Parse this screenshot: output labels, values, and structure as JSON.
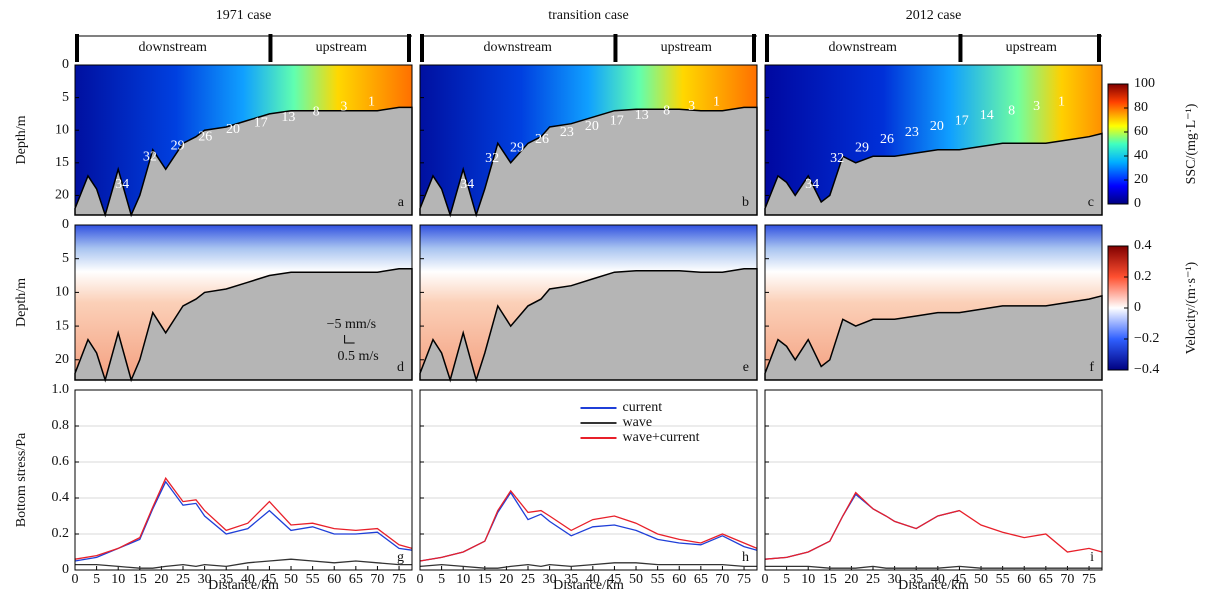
{
  "chart_data": [
    {
      "type": "contour",
      "title": "1971 case",
      "regions": [
        "downstream",
        "upstream"
      ],
      "xlim": [
        0,
        78
      ],
      "ylim": [
        0,
        23
      ],
      "yticks": [
        0,
        5,
        10,
        15,
        20
      ],
      "y_label": "Depth/m",
      "bed_x": [
        0,
        3,
        5,
        7,
        10,
        13,
        15,
        18,
        21,
        25,
        28,
        30,
        35,
        40,
        45,
        50,
        55,
        60,
        65,
        70,
        75,
        78
      ],
      "bed_depth": [
        22,
        17,
        19,
        23,
        16,
        23,
        20,
        13,
        16,
        12,
        11,
        10,
        9.5,
        8.5,
        7.5,
        7,
        7,
        7,
        7,
        7,
        6.5,
        6.5
      ],
      "contour_labels": [
        34,
        32,
        29,
        26,
        20,
        17,
        13,
        8,
        3,
        1
      ],
      "panel_label": "a"
    },
    {
      "type": "contour",
      "title": "transition case",
      "regions": [
        "downstream",
        "upstream"
      ],
      "xlim": [
        0,
        78
      ],
      "ylim": [
        0,
        23
      ],
      "bed_x": [
        0,
        3,
        5,
        7,
        10,
        13,
        15,
        18,
        21,
        25,
        28,
        30,
        35,
        40,
        45,
        50,
        55,
        60,
        65,
        70,
        75,
        78
      ],
      "bed_depth": [
        22,
        17,
        19,
        23,
        16,
        23,
        19,
        12,
        15,
        12,
        11,
        9.5,
        9,
        8,
        7,
        6.8,
        6.8,
        6.8,
        7,
        7,
        6.5,
        6.5
      ],
      "contour_labels": [
        34,
        32,
        29,
        26,
        23,
        20,
        17,
        13,
        8,
        3,
        1
      ],
      "panel_label": "b"
    },
    {
      "type": "contour",
      "title": "2012 case",
      "regions": [
        "downstream",
        "upstream"
      ],
      "xlim": [
        0,
        78
      ],
      "ylim": [
        0,
        23
      ],
      "bed_x": [
        0,
        3,
        5,
        7,
        10,
        13,
        15,
        18,
        21,
        25,
        28,
        30,
        35,
        40,
        45,
        50,
        55,
        60,
        65,
        70,
        75,
        78
      ],
      "bed_depth": [
        22,
        17,
        18,
        20,
        17,
        21,
        20,
        14,
        15,
        14,
        14,
        14,
        13.5,
        13,
        13,
        12.5,
        12,
        12,
        12,
        11.5,
        11,
        10.5
      ],
      "contour_labels": [
        34,
        32,
        29,
        26,
        23,
        20,
        17,
        14,
        8,
        3,
        1
      ],
      "panel_label": "c",
      "colorbar": {
        "label": "SSC/(mg·L⁻¹)",
        "lim": [
          0,
          100
        ],
        "ticks": [
          0,
          20,
          40,
          60,
          80,
          100
        ]
      }
    },
    {
      "type": "vector",
      "xlim": [
        0,
        78
      ],
      "ylim": [
        0,
        23
      ],
      "yticks": [
        0,
        5,
        10,
        15,
        20
      ],
      "y_label": "Depth/m",
      "bed_x": [
        0,
        3,
        5,
        7,
        10,
        13,
        15,
        18,
        21,
        25,
        28,
        30,
        35,
        40,
        45,
        50,
        55,
        60,
        65,
        70,
        75,
        78
      ],
      "bed_depth": [
        22,
        17,
        19,
        23,
        16,
        23,
        20,
        13,
        16,
        12,
        11,
        10,
        9.5,
        8.5,
        7.5,
        7,
        7,
        7,
        7,
        7,
        6.5,
        6.5
      ],
      "scale_labels": [
        "−5 mm/s",
        "0.5 m/s"
      ],
      "panel_label": "d"
    },
    {
      "type": "vector",
      "xlim": [
        0,
        78
      ],
      "ylim": [
        0,
        23
      ],
      "bed_x": [
        0,
        3,
        5,
        7,
        10,
        13,
        15,
        18,
        21,
        25,
        28,
        30,
        35,
        40,
        45,
        50,
        55,
        60,
        65,
        70,
        75,
        78
      ],
      "bed_depth": [
        22,
        17,
        19,
        23,
        16,
        23,
        19,
        12,
        15,
        12,
        11,
        9.5,
        9,
        8,
        7,
        6.8,
        6.8,
        6.8,
        7,
        7,
        6.5,
        6.5
      ],
      "panel_label": "e"
    },
    {
      "type": "vector",
      "xlim": [
        0,
        78
      ],
      "ylim": [
        0,
        23
      ],
      "bed_x": [
        0,
        3,
        5,
        7,
        10,
        13,
        15,
        18,
        21,
        25,
        28,
        30,
        35,
        40,
        45,
        50,
        55,
        60,
        65,
        70,
        75,
        78
      ],
      "bed_depth": [
        22,
        17,
        18,
        20,
        17,
        21,
        20,
        14,
        15,
        14,
        14,
        14,
        13.5,
        13,
        13,
        12.5,
        12,
        12,
        12,
        11.5,
        11,
        10.5
      ],
      "panel_label": "f",
      "colorbar": {
        "label": "Velocity/(m·s⁻¹)",
        "lim": [
          -0.4,
          0.4
        ],
        "ticks": [
          {
            "value": -0.4,
            "label": "−0.4"
          },
          {
            "value": -0.2,
            "label": "−0.2"
          },
          0,
          0.2,
          0.4
        ]
      }
    },
    {
      "type": "line",
      "xlim": [
        0,
        78
      ],
      "xticks": [
        0,
        5,
        10,
        15,
        20,
        25,
        30,
        35,
        40,
        45,
        50,
        55,
        60,
        65,
        70,
        75
      ],
      "ylim": [
        0,
        1
      ],
      "yticks": [
        0,
        0.2,
        0.4,
        0.6,
        0.8,
        {
          "value": 1,
          "label": "1.0"
        }
      ],
      "x_label": "Distance/km",
      "y_label": "Bottom stress/Pa",
      "grid": true,
      "panel_label": "g",
      "x": [
        0,
        5,
        10,
        15,
        18,
        21,
        25,
        28,
        30,
        35,
        40,
        45,
        50,
        55,
        60,
        65,
        70,
        75,
        78
      ],
      "series": [
        {
          "color": "#1f3fd8",
          "values": [
            0.05,
            0.07,
            0.12,
            0.17,
            0.34,
            0.49,
            0.36,
            0.37,
            0.3,
            0.2,
            0.23,
            0.33,
            0.22,
            0.24,
            0.2,
            0.2,
            0.21,
            0.12,
            0.11
          ]
        },
        {
          "color": "#333333",
          "values": [
            0.03,
            0.03,
            0.02,
            0.01,
            0.01,
            0.02,
            0.03,
            0.02,
            0.03,
            0.02,
            0.04,
            0.05,
            0.06,
            0.05,
            0.04,
            0.05,
            0.04,
            0.03,
            0.03
          ]
        },
        {
          "color": "#e8202a",
          "values": [
            0.06,
            0.08,
            0.12,
            0.18,
            0.35,
            0.51,
            0.38,
            0.39,
            0.33,
            0.22,
            0.26,
            0.38,
            0.25,
            0.26,
            0.23,
            0.22,
            0.23,
            0.14,
            0.12
          ]
        }
      ]
    },
    {
      "type": "line",
      "xlim": [
        0,
        78
      ],
      "xticks": [
        0,
        5,
        10,
        15,
        20,
        25,
        30,
        35,
        40,
        45,
        50,
        55,
        60,
        65,
        70,
        75
      ],
      "ylim": [
        0,
        1
      ],
      "x_label": "Distance/km",
      "grid": true,
      "panel_label": "h",
      "legend": "upper-center",
      "x": [
        0,
        5,
        10,
        15,
        18,
        21,
        25,
        28,
        30,
        35,
        40,
        45,
        50,
        55,
        60,
        65,
        70,
        75,
        78
      ],
      "series": [
        {
          "name": "current",
          "color": "#1f3fd8",
          "values": [
            0.05,
            0.07,
            0.1,
            0.16,
            0.32,
            0.43,
            0.28,
            0.31,
            0.27,
            0.19,
            0.24,
            0.25,
            0.22,
            0.17,
            0.15,
            0.14,
            0.19,
            0.13,
            0.11
          ]
        },
        {
          "name": "wave",
          "color": "#333333",
          "values": [
            0.02,
            0.03,
            0.02,
            0.01,
            0.01,
            0.02,
            0.03,
            0.02,
            0.03,
            0.02,
            0.03,
            0.04,
            0.04,
            0.03,
            0.03,
            0.03,
            0.03,
            0.02,
            0.02
          ]
        },
        {
          "name": "wave+current",
          "color": "#e8202a",
          "values": [
            0.05,
            0.07,
            0.1,
            0.16,
            0.33,
            0.44,
            0.32,
            0.33,
            0.3,
            0.22,
            0.28,
            0.3,
            0.26,
            0.2,
            0.17,
            0.15,
            0.2,
            0.15,
            0.12
          ]
        }
      ]
    },
    {
      "type": "line",
      "xlim": [
        0,
        78
      ],
      "xticks": [
        0,
        5,
        10,
        15,
        20,
        25,
        30,
        35,
        40,
        45,
        50,
        55,
        60,
        65,
        70,
        75
      ],
      "ylim": [
        0,
        1
      ],
      "x_label": "Distance/km",
      "grid": true,
      "panel_label": "i",
      "x": [
        0,
        5,
        10,
        15,
        18,
        21,
        25,
        28,
        30,
        35,
        40,
        45,
        50,
        55,
        60,
        65,
        70,
        75,
        78
      ],
      "series": [
        {
          "color": "#1f3fd8",
          "values": [
            0.06,
            0.07,
            0.1,
            0.16,
            0.3,
            0.42,
            0.34,
            0.3,
            0.27,
            0.23,
            0.3,
            0.33,
            null,
            null,
            null,
            null,
            null,
            null,
            null
          ]
        },
        {
          "color": "#333333",
          "values": [
            0.02,
            0.02,
            0.02,
            0.01,
            0.01,
            0.01,
            0.02,
            0.01,
            0.01,
            0.01,
            0.01,
            0.02,
            0.01,
            0.01,
            0.01,
            0.01,
            0.01,
            0.01,
            0.01
          ]
        },
        {
          "color": "#e8202a",
          "values": [
            0.06,
            0.07,
            0.1,
            0.16,
            0.3,
            0.43,
            0.34,
            0.3,
            0.27,
            0.23,
            0.3,
            0.33,
            0.25,
            0.21,
            0.18,
            0.2,
            0.1,
            0.12,
            0.1
          ]
        }
      ]
    }
  ]
}
